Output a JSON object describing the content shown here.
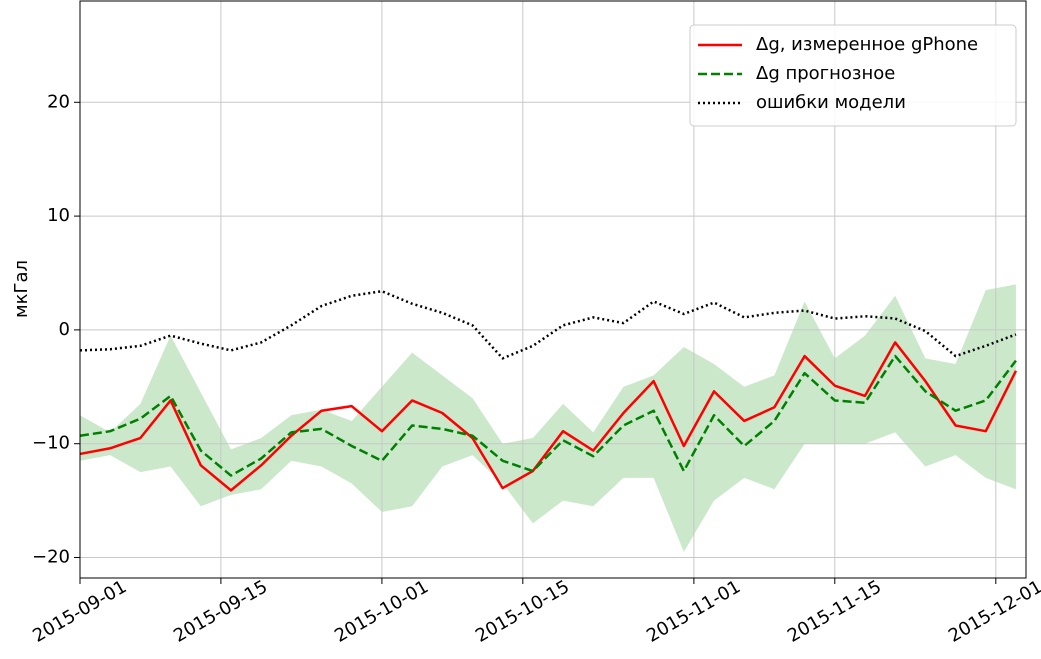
{
  "chart_data": {
    "type": "line",
    "ylabel": "мкГал",
    "x": [
      "2015-09-01",
      "2015-09-04",
      "2015-09-07",
      "2015-09-10",
      "2015-09-13",
      "2015-09-16",
      "2015-09-19",
      "2015-09-22",
      "2015-09-25",
      "2015-09-28",
      "2015-10-01",
      "2015-10-04",
      "2015-10-07",
      "2015-10-10",
      "2015-10-13",
      "2015-10-16",
      "2015-10-19",
      "2015-10-22",
      "2015-10-25",
      "2015-10-28",
      "2015-10-31",
      "2015-11-03",
      "2015-11-06",
      "2015-11-09",
      "2015-11-12",
      "2015-11-15",
      "2015-11-18",
      "2015-11-21",
      "2015-11-24",
      "2015-11-27",
      "2015-11-30",
      "2015-12-03"
    ],
    "series": [
      {
        "name": "Δg, измеренное gPhone",
        "color": "#ff0000",
        "style": "solid",
        "values": [
          -10.9,
          -10.4,
          -9.5,
          -6.2,
          -11.9,
          -14.1,
          -11.9,
          -9.3,
          -7.1,
          -6.7,
          -8.9,
          -6.2,
          -7.3,
          -9.5,
          -13.9,
          -12.4,
          -8.9,
          -10.6,
          -7.3,
          -4.5,
          -10.2,
          -5.4,
          -8.0,
          -6.8,
          -2.3,
          -4.9,
          -5.8,
          -1.1,
          -4.5,
          -8.4,
          -8.9,
          -3.6
        ]
      },
      {
        "name": "Δg прогнозное",
        "color": "#008000",
        "style": "dashed",
        "values": [
          -9.3,
          -8.9,
          -7.8,
          -5.8,
          -10.6,
          -12.8,
          -11.3,
          -9.0,
          -8.7,
          -10.2,
          -11.5,
          -8.4,
          -8.7,
          -9.3,
          -11.5,
          -12.4,
          -9.7,
          -11.1,
          -8.4,
          -7.1,
          -12.4,
          -7.5,
          -10.2,
          -8.0,
          -3.8,
          -6.2,
          -6.4,
          -2.3,
          -5.4,
          -7.1,
          -6.2,
          -2.7
        ]
      },
      {
        "name": "ошибки модели",
        "color": "#000000",
        "style": "dotted",
        "values": [
          -1.8,
          -1.7,
          -1.4,
          -0.5,
          -1.2,
          -1.8,
          -1.1,
          0.4,
          2.1,
          3.0,
          3.4,
          2.3,
          1.5,
          0.4,
          -2.5,
          -1.4,
          0.4,
          1.1,
          0.6,
          2.5,
          1.4,
          2.4,
          1.1,
          1.5,
          1.7,
          1.0,
          1.2,
          1.0,
          -0.1,
          -2.3,
          -1.4,
          -0.4
        ]
      }
    ],
    "band": {
      "color": "#a8d8a8",
      "lower": [
        -11.5,
        -11.0,
        -12.5,
        -12,
        -15.5,
        -14.5,
        -14,
        -11.5,
        -12,
        -13.5,
        -16,
        -15.5,
        -12,
        -11,
        -13.5,
        -17,
        -15,
        -15.5,
        -13,
        -13,
        -19.5,
        -15,
        -13,
        -14,
        -10,
        -10,
        -10,
        -9,
        -12,
        -11,
        -13,
        -14
      ],
      "upper": [
        -7.5,
        -9.0,
        -6.5,
        -0.5,
        -5.5,
        -10.5,
        -9.5,
        -7.5,
        -7,
        -8,
        -5,
        -2,
        -4,
        -6,
        -10,
        -9.5,
        -6.5,
        -9,
        -5,
        -4,
        -1.5,
        -3,
        -5,
        -4,
        2.5,
        -2.5,
        -0.5,
        3,
        -2.5,
        -3,
        3.5,
        4
      ]
    },
    "xlim": [
      "2015-09-01",
      "2015-12-04"
    ],
    "xticks": [
      "2015-09-01",
      "2015-09-15",
      "2015-10-01",
      "2015-10-15",
      "2015-11-01",
      "2015-11-15",
      "2015-12-01"
    ],
    "ylim": [
      -21.8,
      28.9
    ],
    "yticks": [
      {
        "value": -20,
        "label": "−20"
      },
      {
        "value": -10,
        "label": "−10"
      },
      0,
      10,
      20
    ],
    "grid": true,
    "legend": "upper right"
  }
}
